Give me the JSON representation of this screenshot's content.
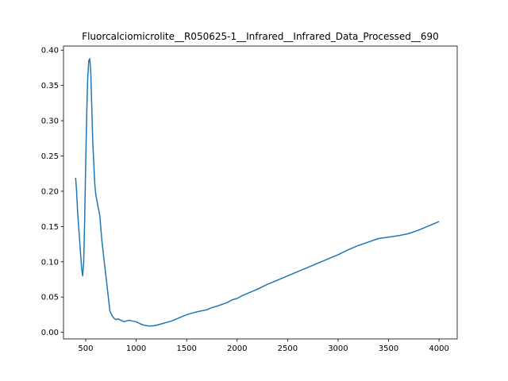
{
  "chart_data": {
    "type": "line",
    "title": "Fluorcalciomicrolite__R050625-1__Infrared__Infrared_Data_Processed__690",
    "xlabel": "",
    "ylabel": "",
    "xlim": [
      280,
      4180
    ],
    "ylim": [
      -0.0094,
      0.4059
    ],
    "xticks": [
      500,
      1000,
      1500,
      2000,
      2500,
      3000,
      3500,
      4000
    ],
    "yticks": [
      0.0,
      0.05,
      0.1,
      0.15,
      0.2,
      0.25,
      0.3,
      0.35,
      0.4
    ],
    "xtick_labels": [
      "500",
      "1000",
      "1500",
      "2000",
      "2500",
      "3000",
      "3500",
      "4000"
    ],
    "ytick_labels": [
      "0.00",
      "0.05",
      "0.10",
      "0.15",
      "0.20",
      "0.25",
      "0.30",
      "0.35",
      "0.40"
    ],
    "grid": false,
    "series": [
      {
        "color": "#1f77b4",
        "x": [
          400,
          410,
          420,
          440,
          460,
          470,
          480,
          490,
          500,
          510,
          520,
          530,
          540,
          550,
          560,
          570,
          580,
          590,
          600,
          620,
          640,
          660,
          680,
          700,
          720,
          740,
          760,
          780,
          800,
          820,
          850,
          880,
          900,
          930,
          960,
          1000,
          1040,
          1080,
          1120,
          1160,
          1200,
          1250,
          1300,
          1350,
          1400,
          1450,
          1500,
          1550,
          1600,
          1700,
          1750,
          1800,
          1900,
          1950,
          2000,
          2050,
          2100,
          2150,
          2200,
          2300,
          2400,
          2500,
          2600,
          2700,
          2800,
          2900,
          3000,
          3100,
          3200,
          3300,
          3400,
          3500,
          3600,
          3700,
          3800,
          3900,
          4000
        ],
        "y": [
          0.219,
          0.2,
          0.17,
          0.13,
          0.09,
          0.08,
          0.1,
          0.16,
          0.24,
          0.31,
          0.36,
          0.385,
          0.388,
          0.37,
          0.32,
          0.27,
          0.24,
          0.21,
          0.195,
          0.18,
          0.165,
          0.13,
          0.105,
          0.08,
          0.055,
          0.03,
          0.024,
          0.02,
          0.018,
          0.019,
          0.017,
          0.015,
          0.016,
          0.017,
          0.016,
          0.015,
          0.012,
          0.01,
          0.009,
          0.009,
          0.01,
          0.012,
          0.014,
          0.016,
          0.019,
          0.022,
          0.025,
          0.027,
          0.029,
          0.032,
          0.035,
          0.037,
          0.042,
          0.046,
          0.048,
          0.052,
          0.055,
          0.058,
          0.061,
          0.068,
          0.074,
          0.08,
          0.086,
          0.092,
          0.098,
          0.104,
          0.11,
          0.117,
          0.123,
          0.128,
          0.133,
          0.135,
          0.137,
          0.14,
          0.145,
          0.151,
          0.157
        ]
      }
    ]
  }
}
